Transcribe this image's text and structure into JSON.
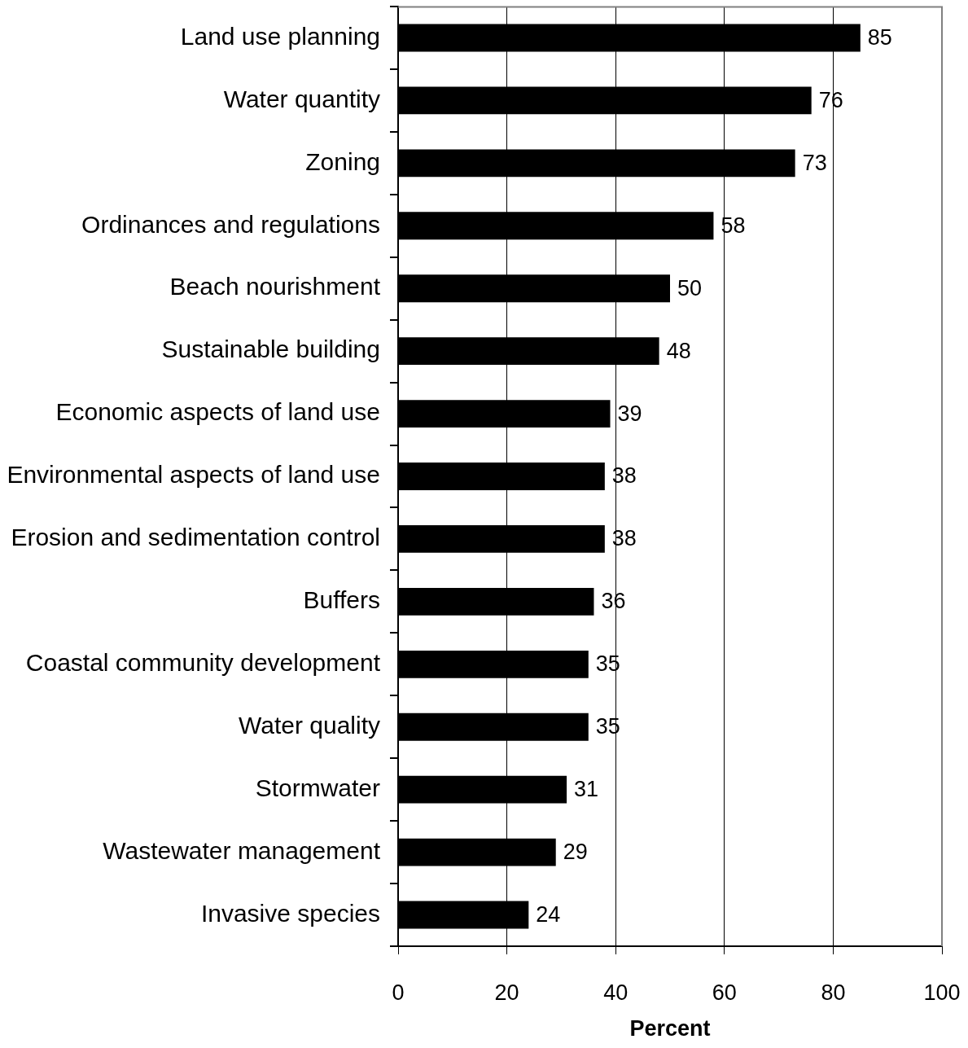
{
  "chart_data": {
    "type": "bar",
    "orientation": "horizontal",
    "categories": [
      "Land use planning",
      "Water quantity",
      "Zoning",
      "Ordinances and regulations",
      "Beach nourishment",
      "Sustainable building",
      "Economic aspects of land use",
      "Environmental aspects of land use",
      "Erosion and sedimentation control",
      "Buffers",
      "Coastal community development",
      "Water quality",
      "Stormwater",
      "Wastewater management",
      "Invasive species"
    ],
    "values": [
      85,
      76,
      73,
      58,
      50,
      48,
      39,
      38,
      38,
      36,
      35,
      35,
      31,
      29,
      24
    ],
    "color": "#000000",
    "xlim": [
      0,
      100
    ],
    "xticks": [
      0,
      20,
      40,
      60,
      80,
      100
    ],
    "xlabel": "Percent",
    "data_labels": true,
    "grid": "x"
  }
}
